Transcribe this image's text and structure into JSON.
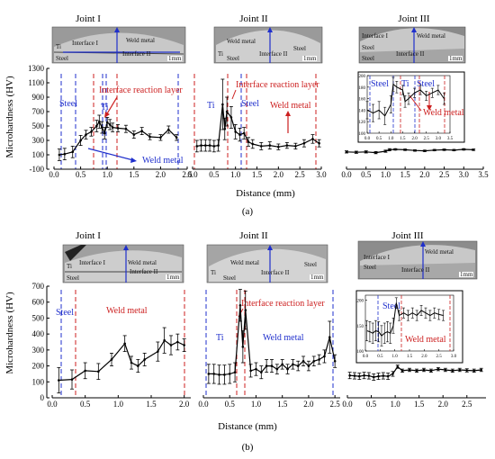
{
  "chart_data": [
    {
      "type": "line",
      "panel": "(a)",
      "ylabel": "Microhardness (HV)",
      "xlabel": "Distance (mm)",
      "ylim": [
        -100,
        1300
      ],
      "yticks": [
        -100,
        100,
        300,
        500,
        700,
        900,
        1100,
        1300
      ],
      "subplots": [
        {
          "title": "Joint I",
          "xlim": [
            0.0,
            2.5
          ],
          "xticks": [
            "0.0",
            "0.5",
            "1.0",
            "1.5",
            "2.0",
            "2.5"
          ],
          "x": [
            0.1,
            0.2,
            0.35,
            0.5,
            0.6,
            0.7,
            0.8,
            0.85,
            0.9,
            0.95,
            1.0,
            1.05,
            1.1,
            1.2,
            1.35,
            1.5,
            1.65,
            1.8,
            2.0,
            2.15,
            2.3
          ],
          "y": [
            100,
            110,
            140,
            300,
            380,
            420,
            500,
            560,
            480,
            400,
            550,
            520,
            480,
            470,
            460,
            380,
            430,
            350,
            340,
            450,
            340
          ],
          "err": [
            80,
            80,
            80,
            70,
            60,
            60,
            80,
            90,
            80,
            80,
            70,
            70,
            60,
            50,
            50,
            50,
            50,
            40,
            40,
            50,
            40
          ]
        },
        {
          "title": "Joint II",
          "xlim": [
            0.0,
            3.0
          ],
          "xticks": [
            "0.0",
            "0.5",
            "1.0",
            "1.5",
            "2.0",
            "2.5",
            "3.0"
          ],
          "x": [
            0.1,
            0.2,
            0.3,
            0.4,
            0.5,
            0.6,
            0.7,
            0.75,
            0.8,
            0.9,
            1.0,
            1.1,
            1.2,
            1.3,
            1.4,
            1.6,
            1.8,
            2.0,
            2.2,
            2.4,
            2.6,
            2.8,
            2.95
          ],
          "y": [
            220,
            230,
            230,
            230,
            220,
            230,
            800,
            460,
            700,
            620,
            420,
            380,
            400,
            280,
            250,
            220,
            230,
            210,
            230,
            220,
            260,
            320,
            260
          ],
          "err": [
            80,
            80,
            80,
            80,
            80,
            80,
            350,
            150,
            200,
            150,
            100,
            90,
            80,
            60,
            60,
            50,
            50,
            40,
            40,
            40,
            50,
            60,
            50
          ]
        },
        {
          "title": "Joint III",
          "xlim": [
            0.0,
            3.5
          ],
          "xticks": [
            "0.0",
            "0.5",
            "1.0",
            "1.5",
            "2.0",
            "2.5",
            "3.0",
            "3.5"
          ],
          "x": [
            0.0,
            0.25,
            0.5,
            0.75,
            1.0,
            1.1,
            1.25,
            1.5,
            1.75,
            2.0,
            2.25,
            2.5,
            2.75,
            3.0,
            3.25
          ],
          "y": [
            140,
            135,
            140,
            130,
            150,
            170,
            175,
            170,
            160,
            155,
            165,
            170,
            165,
            175,
            170
          ],
          "err": [
            15,
            15,
            15,
            15,
            15,
            15,
            10,
            10,
            10,
            10,
            10,
            10,
            10,
            10,
            10
          ]
        }
      ],
      "inset": {
        "yticks": [
          "100",
          "120",
          "140",
          "160",
          "180",
          "200"
        ],
        "xticks": [
          "0.0",
          "0.5",
          "1.0",
          "1.5",
          "2.0",
          "2.5",
          "3.0",
          "3.5"
        ],
        "ylim": [
          100,
          200
        ],
        "x": [
          0.0,
          0.25,
          0.5,
          0.75,
          1.0,
          1.1,
          1.25,
          1.5,
          1.6,
          1.75,
          2.0,
          2.25,
          2.5,
          2.75,
          3.0,
          3.25
        ],
        "y": [
          140,
          135,
          140,
          130,
          150,
          185,
          180,
          175,
          155,
          160,
          170,
          175,
          165,
          170,
          175,
          160
        ],
        "err": [
          15,
          15,
          15,
          15,
          15,
          12,
          10,
          8,
          10,
          10,
          8,
          8,
          8,
          8,
          8,
          10
        ]
      },
      "annotations": {
        "joint1_steel": "Steel",
        "joint1_interface": "Interface reaction layer",
        "joint1_ti": "Ti",
        "joint1_weld": "Weld metal",
        "joint2_ti": "Ti",
        "joint2_interface": "Interface reaction layer",
        "joint2_steel": "Steel",
        "joint2_weld": "Weld metal",
        "joint3_steel": "Steel",
        "joint3_steel2": "Steel",
        "joint3_ti": "Ti",
        "joint3_weld": "Weld metal"
      },
      "micrographs": [
        {
          "labels": [
            "Interface I",
            "Weld metal",
            "Interface II",
            "Ti",
            "Steel"
          ],
          "scale": "1mm"
        },
        {
          "labels": [
            "Weld metal",
            "Steel",
            "Interface II",
            "Ti",
            "Steel"
          ],
          "scale": "1mm"
        },
        {
          "labels": [
            "Interface I",
            "Weld metal",
            "Steel",
            "Interface II",
            "Steel"
          ],
          "scale": "1mm"
        }
      ]
    },
    {
      "type": "line",
      "panel": "(b)",
      "ylabel": "Microhardness (HV)",
      "xlabel": "Distance (mm)",
      "ylim": [
        0,
        700
      ],
      "yticks": [
        0,
        100,
        200,
        300,
        400,
        500,
        600,
        700
      ],
      "subplots": [
        {
          "title": "Joint I",
          "xlim": [
            0.0,
            2.1
          ],
          "xticks": [
            "0.0",
            "0.5",
            "1.0",
            "1.5",
            "2.0"
          ],
          "x": [
            0.1,
            0.3,
            0.5,
            0.7,
            0.9,
            1.1,
            1.2,
            1.3,
            1.4,
            1.6,
            1.7,
            1.8,
            1.9,
            2.0
          ],
          "y": [
            110,
            115,
            170,
            165,
            240,
            340,
            220,
            200,
            240,
            290,
            360,
            330,
            350,
            330
          ],
          "err": [
            80,
            60,
            50,
            50,
            40,
            50,
            40,
            40,
            40,
            60,
            80,
            60,
            50,
            40
          ]
        },
        {
          "title": "Joint II",
          "xlim": [
            0.0,
            2.6
          ],
          "xticks": [
            "0.0",
            "0.5",
            "1.0",
            "1.5",
            "2.0",
            "2.5"
          ],
          "x": [
            0.1,
            0.2,
            0.3,
            0.4,
            0.5,
            0.6,
            0.7,
            0.75,
            0.8,
            0.9,
            1.0,
            1.1,
            1.2,
            1.3,
            1.4,
            1.5,
            1.6,
            1.7,
            1.8,
            1.9,
            2.0,
            2.1,
            2.2,
            2.3,
            2.4,
            2.5
          ],
          "y": [
            150,
            150,
            145,
            145,
            150,
            160,
            580,
            320,
            550,
            170,
            180,
            160,
            200,
            200,
            180,
            210,
            180,
            210,
            200,
            230,
            200,
            230,
            240,
            260,
            380,
            230
          ],
          "err": [
            60,
            60,
            60,
            60,
            60,
            60,
            100,
            100,
            120,
            40,
            40,
            40,
            40,
            40,
            30,
            30,
            30,
            30,
            30,
            30,
            30,
            30,
            30,
            40,
            100,
            40
          ]
        },
        {
          "title": "Joint III",
          "xlim": [
            0.0,
            2.9
          ],
          "xticks": [
            "0.0",
            "0.5",
            "1.0",
            "1.5",
            "2.0",
            "2.5"
          ],
          "x": [
            0.05,
            0.15,
            0.25,
            0.35,
            0.45,
            0.55,
            0.65,
            0.75,
            0.85,
            0.95,
            1.05,
            1.15,
            1.3,
            1.45,
            1.6,
            1.75,
            1.9,
            2.05,
            2.2,
            2.35,
            2.5,
            2.65,
            2.8
          ],
          "y": [
            140,
            138,
            135,
            140,
            138,
            130,
            135,
            138,
            135,
            150,
            195,
            170,
            175,
            170,
            175,
            170,
            180,
            175,
            170,
            175,
            172,
            170,
            175
          ],
          "err": [
            20,
            20,
            20,
            20,
            20,
            20,
            20,
            20,
            20,
            15,
            10,
            10,
            10,
            10,
            10,
            10,
            10,
            10,
            10,
            10,
            10,
            10,
            10
          ]
        }
      ],
      "inset": {
        "yticks": [
          "100",
          "150",
          "200"
        ],
        "xticks": [
          "0.0",
          "0.5",
          "1.0",
          "1.5",
          "2.0",
          "2.5",
          "3.0"
        ],
        "ylim": [
          100,
          210
        ],
        "x": [
          0.05,
          0.15,
          0.25,
          0.35,
          0.45,
          0.55,
          0.65,
          0.75,
          0.85,
          0.95,
          1.05,
          1.15,
          1.3,
          1.45,
          1.6,
          1.75,
          1.9,
          2.05,
          2.2,
          2.35,
          2.5,
          2.65
        ],
        "y": [
          140,
          138,
          135,
          140,
          138,
          130,
          135,
          138,
          135,
          150,
          195,
          170,
          175,
          170,
          175,
          170,
          180,
          175,
          170,
          175,
          172,
          170
        ],
        "err": [
          20,
          20,
          20,
          20,
          20,
          20,
          20,
          20,
          20,
          15,
          10,
          10,
          10,
          10,
          10,
          10,
          10,
          10,
          10,
          10,
          10,
          10
        ]
      },
      "annotations": {
        "joint1_steel": "Steel",
        "joint1_weld": "Weld metal",
        "joint2_ti": "Ti",
        "joint2_interface": "Interface reaction layer",
        "joint2_weld": "Weld metal",
        "joint3_steel": "Steel",
        "joint3_weld": "Weld metal"
      },
      "micrographs": [
        {
          "labels": [
            "Interface I",
            "Weld metal",
            "Interface II",
            "Ti",
            "Steel"
          ],
          "scale": "1mm"
        },
        {
          "labels": [
            "Weld metal",
            "Steel",
            "Interface II",
            "Ti",
            "Steel"
          ],
          "scale": "1mm"
        },
        {
          "labels": [
            "Weld metal",
            "Interface I",
            "Steel",
            "Interface II"
          ],
          "scale": "1mm"
        }
      ]
    }
  ]
}
